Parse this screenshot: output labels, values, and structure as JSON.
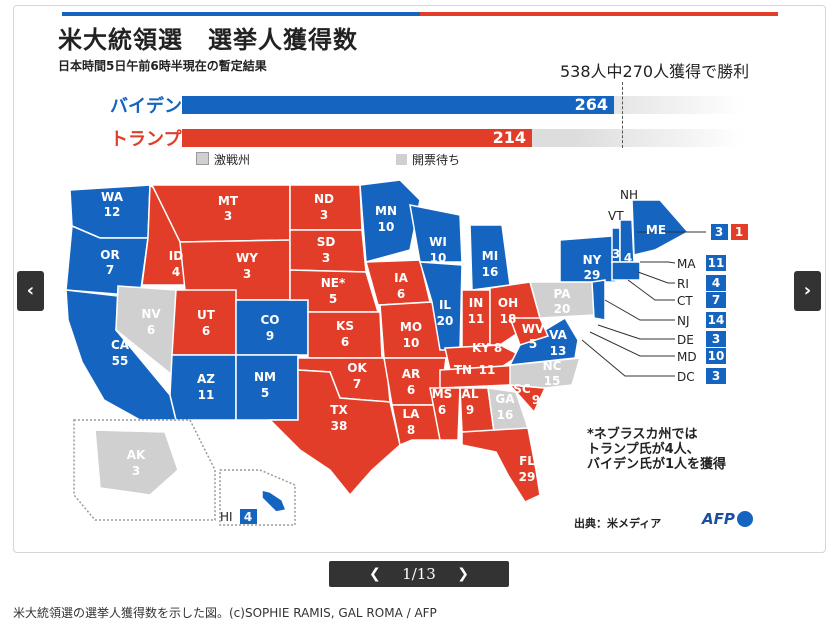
{
  "infographic": {
    "title": "米大統領選　選挙人獲得数",
    "subtitle": "日本時間5日午前6時半現在の暫定結果",
    "threshold_text": "538人中270人獲得で勝利",
    "colors": {
      "biden": "#1565c0",
      "trump": "#e23d28",
      "contested": "#d0d0d0",
      "pending": "#d0d0d0"
    },
    "candidates": [
      {
        "name": "バイデン",
        "votes": "264",
        "fraction": 0.4907
      },
      {
        "name": "トランプ",
        "votes": "214",
        "fraction": 0.3978
      }
    ],
    "legend": {
      "contested": "激戦州",
      "pending": "開票待ち"
    },
    "states": {
      "WA": {
        "abbr": "WA",
        "ev": "12"
      },
      "OR": {
        "abbr": "OR",
        "ev": "7"
      },
      "CA": {
        "abbr": "CA",
        "ev": "55"
      },
      "NV": {
        "abbr": "NV",
        "ev": "6"
      },
      "ID": {
        "abbr": "ID",
        "ev": "4"
      },
      "MT": {
        "abbr": "MT",
        "ev": "3"
      },
      "WY": {
        "abbr": "WY",
        "ev": "3"
      },
      "UT": {
        "abbr": "UT",
        "ev": "6"
      },
      "CO": {
        "abbr": "CO",
        "ev": "9"
      },
      "AZ": {
        "abbr": "AZ",
        "ev": "11"
      },
      "NM": {
        "abbr": "NM",
        "ev": "5"
      },
      "ND": {
        "abbr": "ND",
        "ev": "3"
      },
      "SD": {
        "abbr": "SD",
        "ev": "3"
      },
      "NE": {
        "abbr": "NE*",
        "ev": "5"
      },
      "KS": {
        "abbr": "KS",
        "ev": "6"
      },
      "OK": {
        "abbr": "OK",
        "ev": "7"
      },
      "TX": {
        "abbr": "TX",
        "ev": "38"
      },
      "MN": {
        "abbr": "MN",
        "ev": "10"
      },
      "IA": {
        "abbr": "IA",
        "ev": "6"
      },
      "MO": {
        "abbr": "MO",
        "ev": "10"
      },
      "AR": {
        "abbr": "AR",
        "ev": "6"
      },
      "LA": {
        "abbr": "LA",
        "ev": "8"
      },
      "WI": {
        "abbr": "WI",
        "ev": "10"
      },
      "IL": {
        "abbr": "IL",
        "ev": "20"
      },
      "MI": {
        "abbr": "MI",
        "ev": "16"
      },
      "IN": {
        "abbr": "IN",
        "ev": "11"
      },
      "OH": {
        "abbr": "OH",
        "ev": "18"
      },
      "KY": {
        "abbr": "KY",
        "ev": "8"
      },
      "TN": {
        "abbr": "TN",
        "ev": "11"
      },
      "MS": {
        "abbr": "MS",
        "ev": "6"
      },
      "AL": {
        "abbr": "AL",
        "ev": "9"
      },
      "GA": {
        "abbr": "GA",
        "ev": "16"
      },
      "FL": {
        "abbr": "FL",
        "ev": "29"
      },
      "SC": {
        "abbr": "SC",
        "ev": "9"
      },
      "NC": {
        "abbr": "NC",
        "ev": "15"
      },
      "VA": {
        "abbr": "VA",
        "ev": "13"
      },
      "WV": {
        "abbr": "WV",
        "ev": "5"
      },
      "PA": {
        "abbr": "PA",
        "ev": "20"
      },
      "NY": {
        "abbr": "NY",
        "ev": "29"
      },
      "VT": {
        "abbr": "VT",
        "ev": "3"
      },
      "NH": {
        "abbr": "NH",
        "ev": "4"
      },
      "ME": {
        "abbr": "ME",
        "ev": "4"
      },
      "AK": {
        "abbr": "AK",
        "ev": "3"
      },
      "HI": {
        "abbr": "HI",
        "ev": "4"
      }
    },
    "maine_split": {
      "biden": "3",
      "trump": "1"
    },
    "small_states": [
      {
        "abbr": "MA",
        "ev": "11"
      },
      {
        "abbr": "RI",
        "ev": "4"
      },
      {
        "abbr": "CT",
        "ev": "7"
      },
      {
        "abbr": "NJ",
        "ev": "14"
      },
      {
        "abbr": "DE",
        "ev": "3"
      },
      {
        "abbr": "MD",
        "ev": "10"
      },
      {
        "abbr": "DC",
        "ev": "3"
      }
    ],
    "note": "*ネブラスカ州では\nトランプ氏が4人、\nバイデン氏が1人を獲得",
    "source": "出典：米メディア",
    "logo": "AFP"
  },
  "gallery": {
    "prev_icon": "chevron-left-icon",
    "next_icon": "chevron-right-icon",
    "page_label": "1/13"
  },
  "caption": "米大統領選の選挙人獲得数を示した図。(c)SOPHIE RAMIS, GAL ROMA / AFP"
}
